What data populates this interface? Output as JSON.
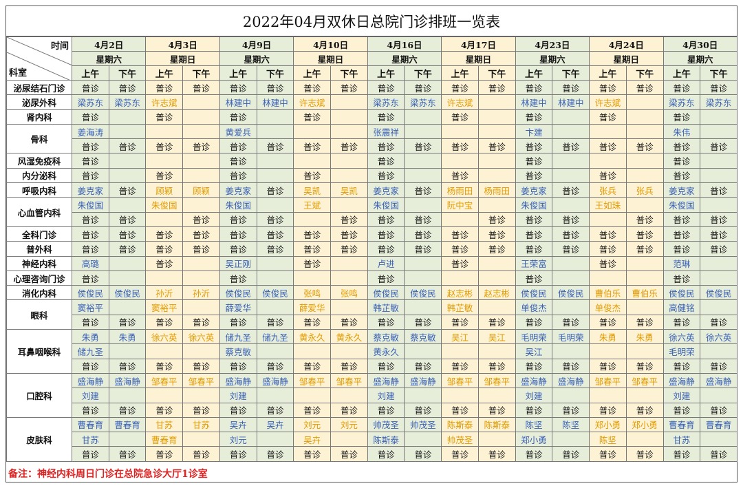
{
  "title": "2022年04月双休日总院门诊排班一览表",
  "header": {
    "time_label": "时间",
    "dept_label": "科室",
    "am_label": "上午",
    "pm_label": "下午"
  },
  "dates": [
    {
      "date": "4月2日",
      "weekday": "星期六",
      "shade": "g"
    },
    {
      "date": "4月3日",
      "weekday": "星期日",
      "shade": "y"
    },
    {
      "date": "4月9日",
      "weekday": "星期六",
      "shade": "g"
    },
    {
      "date": "4月10日",
      "weekday": "星期日",
      "shade": "y"
    },
    {
      "date": "4月16日",
      "weekday": "星期六",
      "shade": "g"
    },
    {
      "date": "4月17日",
      "weekday": "星期日",
      "shade": "y"
    },
    {
      "date": "4月23日",
      "weekday": "星期六",
      "shade": "g"
    },
    {
      "date": "4月24日",
      "weekday": "星期日",
      "shade": "y"
    },
    {
      "date": "4月30日",
      "weekday": "星期六",
      "shade": "g"
    }
  ],
  "departments": [
    {
      "name": "泌尿结石门诊",
      "rows": [
        [
          "普诊",
          "普诊",
          "普诊",
          "普诊",
          "普诊",
          "普诊",
          "普诊",
          "普诊",
          "普诊",
          "普诊",
          "普诊",
          "普诊",
          "普诊",
          "普诊",
          "普诊",
          "普诊",
          "普诊",
          "普诊"
        ]
      ]
    },
    {
      "name": "泌尿外科",
      "rows": [
        [
          "梁苏东",
          "梁苏东",
          "许志斌",
          "",
          "林建中",
          "林建中",
          "许志斌",
          "",
          "梁苏东",
          "梁苏东",
          "许志斌",
          "",
          "林建中",
          "林建中",
          "许志斌",
          "",
          "梁苏东",
          "梁苏东"
        ]
      ]
    },
    {
      "name": "肾内科",
      "rows": [
        [
          "普诊",
          "",
          "普诊",
          "",
          "普诊",
          "",
          "普诊",
          "",
          "普诊",
          "",
          "普诊",
          "",
          "普诊",
          "",
          "普诊",
          "",
          "普诊",
          ""
        ]
      ]
    },
    {
      "name": "骨科",
      "rows": [
        [
          "姜海涛",
          "",
          "",
          "",
          "黄爱兵",
          "",
          "",
          "",
          "张震祥",
          "",
          "",
          "",
          "卞建",
          "",
          "",
          "",
          "朱伟",
          ""
        ],
        [
          "普诊",
          "普诊",
          "普诊",
          "普诊",
          "普诊",
          "普诊",
          "普诊",
          "普诊",
          "普诊",
          "普诊",
          "普诊",
          "普诊",
          "普诊",
          "普诊",
          "普诊",
          "普诊",
          "普诊",
          "普诊"
        ]
      ]
    },
    {
      "name": "风湿免疫科",
      "rows": [
        [
          "普诊",
          "",
          "",
          "",
          "普诊",
          "",
          "",
          "",
          "普诊",
          "",
          "",
          "",
          "普诊",
          "",
          "",
          "",
          "普诊",
          ""
        ]
      ]
    },
    {
      "name": "内分泌科",
      "rows": [
        [
          "普诊",
          "",
          "普诊",
          "",
          "普诊",
          "",
          "普诊",
          "",
          "普诊",
          "",
          "普诊",
          "",
          "普诊",
          "",
          "普诊",
          "",
          "普诊",
          ""
        ]
      ]
    },
    {
      "name": "呼吸内科",
      "rows": [
        [
          "姜克家",
          "普诊",
          "顾颖",
          "顾颖",
          "姜克家",
          "普诊",
          "吴凯",
          "吴凯",
          "姜克家",
          "普诊",
          "杨雨田",
          "杨雨田",
          "姜克家",
          "普诊",
          "张兵",
          "张兵",
          "姜克家",
          "普诊"
        ]
      ]
    },
    {
      "name": "心血管内科",
      "rows": [
        [
          "朱俊国",
          "",
          "朱俊国",
          "",
          "朱俊国",
          "",
          "王斌",
          "",
          "朱俊国",
          "",
          "阮中宝",
          "",
          "朱俊国",
          "",
          "王如珠",
          "",
          "朱俊国",
          ""
        ],
        [
          "普诊",
          "普诊",
          "",
          "普诊",
          "普诊",
          "普诊",
          "",
          "普诊",
          "普诊",
          "普诊",
          "",
          "普诊",
          "普诊",
          "普诊",
          "",
          "普诊",
          "普诊",
          "普诊"
        ]
      ]
    },
    {
      "name": "全科门诊",
      "rows": [
        [
          "普诊",
          "普诊",
          "普诊",
          "普诊",
          "普诊",
          "普诊",
          "普诊",
          "普诊",
          "普诊",
          "普诊",
          "普诊",
          "普诊",
          "普诊",
          "普诊",
          "普诊",
          "普诊",
          "普诊",
          "普诊"
        ]
      ]
    },
    {
      "name": "普外科",
      "rows": [
        [
          "普诊",
          "普诊",
          "普诊",
          "普诊",
          "普诊",
          "普诊",
          "普诊",
          "普诊",
          "普诊",
          "普诊",
          "普诊",
          "普诊",
          "普诊",
          "普诊",
          "普诊",
          "普诊",
          "普诊",
          "普诊"
        ]
      ]
    },
    {
      "name": "神经内科",
      "rows": [
        [
          "高璐",
          "",
          "普诊",
          "",
          "吴正刚",
          "",
          "普诊",
          "",
          "卢进",
          "",
          "普诊",
          "",
          "王荣富",
          "",
          "普诊",
          "",
          "范琳",
          ""
        ]
      ]
    },
    {
      "name": "心理咨询门诊",
      "rows": [
        [
          "普诊",
          "",
          "",
          "",
          "普诊",
          "",
          "",
          "",
          "普诊",
          "",
          "",
          "",
          "普诊",
          "",
          "",
          "",
          "普诊",
          ""
        ]
      ]
    },
    {
      "name": "消化内科",
      "rows": [
        [
          "侯俊民",
          "侯俊民",
          "孙沂",
          "孙沂",
          "侯俊民",
          "侯俊民",
          "张鸣",
          "张鸣",
          "侯俊民",
          "侯俊民",
          "赵志彬",
          "赵志彬",
          "侯俊民",
          "侯俊民",
          "曹伯乐",
          "曹伯乐",
          "侯俊民",
          "侯俊民"
        ]
      ]
    },
    {
      "name": "眼科",
      "rows": [
        [
          "窦裕平",
          "",
          "窦裕平",
          "",
          "薛爱华",
          "",
          "薛爱华",
          "",
          "韩芷敏",
          "",
          "韩芷敏",
          "",
          "单俊杰",
          "",
          "单俊杰",
          "",
          "高健铭",
          ""
        ],
        [
          "普诊",
          "普诊",
          "普诊",
          "普诊",
          "普诊",
          "普诊",
          "普诊",
          "普诊",
          "普诊",
          "普诊",
          "普诊",
          "普诊",
          "普诊",
          "普诊",
          "普诊",
          "普诊",
          "普诊",
          "普诊"
        ]
      ]
    },
    {
      "name": "耳鼻咽喉科",
      "rows": [
        [
          "朱勇",
          "朱勇",
          "徐六英",
          "徐六英",
          "储九圣",
          "储九圣",
          "黄永久",
          "黄永久",
          "蔡克敏",
          "蔡克敏",
          "吴江",
          "吴江",
          "毛明荣",
          "毛明荣",
          "朱勇",
          "朱勇",
          "徐六英",
          "徐六英"
        ],
        [
          "储九圣",
          "",
          "",
          "",
          "蔡克敏",
          "",
          "",
          "",
          "黄永久",
          "",
          "",
          "",
          "吴江",
          "",
          "",
          "",
          "毛明荣",
          ""
        ],
        [
          "普诊",
          "普诊",
          "普诊",
          "普诊",
          "普诊",
          "普诊",
          "普诊",
          "普诊",
          "普诊",
          "普诊",
          "普诊",
          "普诊",
          "普诊",
          "普诊",
          "普诊",
          "普诊",
          "普诊",
          "普诊"
        ]
      ]
    },
    {
      "name": "口腔科",
      "rows": [
        [
          "盛海静",
          "盛海静",
          "邹春平",
          "邹春平",
          "盛海静",
          "盛海静",
          "邹春平",
          "邹春平",
          "盛海静",
          "盛海静",
          "邹春平",
          "邹春平",
          "盛海静",
          "盛海静",
          "邹春平",
          "邹春平",
          "盛海静",
          "盛海静"
        ],
        [
          "刘建",
          "",
          "",
          "",
          "刘建",
          "",
          "",
          "",
          "刘建",
          "",
          "",
          "",
          "刘建",
          "",
          "",
          "",
          "刘建",
          ""
        ],
        [
          "普诊",
          "普诊",
          "普诊",
          "普诊",
          "普诊",
          "普诊",
          "普诊",
          "普诊",
          "普诊",
          "普诊",
          "普诊",
          "普诊",
          "普诊",
          "普诊",
          "普诊",
          "普诊",
          "普诊",
          "普诊"
        ]
      ]
    },
    {
      "name": "皮肤科",
      "rows": [
        [
          "曹春育",
          "曹春育",
          "甘苏",
          "甘苏",
          "吴卉",
          "吴卉",
          "刘元",
          "刘元",
          "帅茂圣",
          "帅茂圣",
          "陈斯泰",
          "陈斯泰",
          "陈坚",
          "陈坚",
          "郑小勇",
          "郑小勇",
          "曹春育",
          "曹春育"
        ],
        [
          "甘苏",
          "",
          "曹春育",
          "",
          "刘元",
          "",
          "吴卉",
          "",
          "陈斯泰",
          "",
          "帅茂圣",
          "",
          "郑小勇",
          "",
          "陈坚",
          "",
          "甘苏",
          ""
        ],
        [
          "普诊",
          "普诊",
          "普诊",
          "普诊",
          "普诊",
          "普诊",
          "普诊",
          "普诊",
          "普诊",
          "普诊",
          "普诊",
          "普诊",
          "普诊",
          "普诊",
          "普诊",
          "普诊",
          "普诊",
          "普诊"
        ]
      ]
    }
  ],
  "note": "备注：神经内科周日门诊在总院急诊大厅1诊室",
  "colors": {
    "saturday_bg": "#e6edd9",
    "sunday_bg": "#fdf2d4",
    "saturday_name": "#3a61b6",
    "sunday_name": "#e29b00",
    "note": "#dd2222"
  }
}
